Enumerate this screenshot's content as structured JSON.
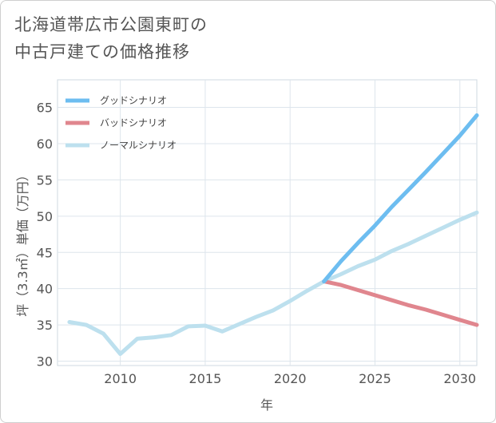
{
  "title_line1": "北海道帯広市公園東町の",
  "title_line2": "中古戸建ての価格推移",
  "chart_data": {
    "type": "line",
    "xlabel": "年",
    "ylabel": "坪（3.3㎡）単価（万円）",
    "xlim": [
      2006.3,
      2031
    ],
    "ylim": [
      29.4,
      68.8
    ],
    "xticks": [
      2010,
      2015,
      2020,
      2025,
      2030
    ],
    "yticks": [
      30,
      35,
      40,
      45,
      50,
      55,
      60,
      65
    ],
    "grid": true,
    "legend_position": "top-left",
    "series": [
      {
        "name": "グッドシナリオ",
        "color": "#6dbdf0",
        "x": [
          2022,
          2023,
          2024,
          2025,
          2026,
          2027,
          2028,
          2029,
          2030,
          2031
        ],
        "y": [
          41,
          43.8,
          46.3,
          48.7,
          51.3,
          53.7,
          56.1,
          58.6,
          61.1,
          63.9
        ]
      },
      {
        "name": "バッドシナリオ",
        "color": "#e0868e",
        "x": [
          2022,
          2023,
          2024,
          2025,
          2026,
          2027,
          2028,
          2029,
          2030,
          2031
        ],
        "y": [
          41,
          40.5,
          39.8,
          39.1,
          38.4,
          37.7,
          37.1,
          36.4,
          35.7,
          35.0
        ]
      },
      {
        "name": "ノーマルシナリオ",
        "color": "#bde0ee",
        "x": [
          2007,
          2008,
          2009,
          2010,
          2011,
          2012,
          2013,
          2014,
          2015,
          2016,
          2017,
          2018,
          2019,
          2020,
          2021,
          2022,
          2023,
          2024,
          2025,
          2026,
          2027,
          2028,
          2029,
          2030,
          2031
        ],
        "y": [
          35.4,
          35.0,
          33.8,
          31.0,
          33.1,
          33.3,
          33.6,
          34.8,
          34.9,
          34.1,
          35.1,
          36.1,
          37.0,
          38.3,
          39.7,
          41.0,
          42.0,
          43.1,
          44.0,
          45.2,
          46.2,
          47.3,
          48.4,
          49.5,
          50.5
        ]
      }
    ]
  }
}
